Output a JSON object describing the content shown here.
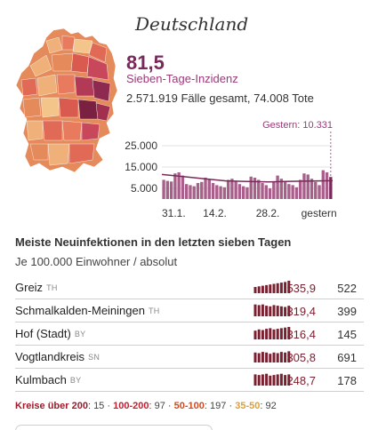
{
  "header": {
    "title": "Deutschland"
  },
  "stats": {
    "incidence": "81,5",
    "incidence_label": "Sieben-Tage-Inzidenz",
    "totals": "2.571.919 Fälle gesamt, 74.008 Tote"
  },
  "chart_data": {
    "type": "bar",
    "callout": "Gestern: 10.331",
    "yticks": [
      "25.000",
      "15.000",
      "5.000"
    ],
    "ytick_values": [
      25000,
      15000,
      5000
    ],
    "xticks": [
      "31.1.",
      "14.2.",
      "28.2.",
      "gestern"
    ],
    "ylim": [
      0,
      30000
    ],
    "values": [
      9000,
      8500,
      8200,
      12000,
      12500,
      11000,
      7000,
      6500,
      6000,
      7500,
      8000,
      10000,
      9000,
      7500,
      6500,
      6000,
      5500,
      9000,
      9500,
      8500,
      7000,
      6000,
      5500,
      10500,
      10000,
      9000,
      7500,
      6500,
      5000,
      8000,
      11000,
      9500,
      8000,
      7000,
      6500,
      5500,
      9000,
      12000,
      11500,
      9500,
      8000,
      6500,
      13500,
      12500,
      10331
    ],
    "trend": [
      11500,
      10500,
      9500,
      8500,
      8200,
      8000,
      8300,
      8400,
      8600
    ]
  },
  "section": {
    "title": "Meiste Neuinfektionen in den letzten sieben Tagen",
    "subtitle": "Je 100.000 Einwohner / absolut"
  },
  "rows": [
    {
      "name": "Greiz",
      "state": "TH",
      "incidence": "535,9",
      "absolute": "522",
      "spark": [
        0.5,
        0.55,
        0.6,
        0.65,
        0.7,
        0.75,
        0.8,
        0.85,
        0.9,
        1.0
      ]
    },
    {
      "name": "Schmalkalden-Meiningen",
      "state": "TH",
      "incidence": "319,4",
      "absolute": "399",
      "spark": [
        0.95,
        0.9,
        0.95,
        0.85,
        0.8,
        0.9,
        0.85,
        0.8,
        0.75,
        0.85
      ]
    },
    {
      "name": "Hof (Stadt)",
      "state": "BY",
      "incidence": "316,4",
      "absolute": "145",
      "spark": [
        0.7,
        0.8,
        0.75,
        0.85,
        0.9,
        0.8,
        0.85,
        0.9,
        0.95,
        1.0
      ]
    },
    {
      "name": "Vogtlandkreis",
      "state": "SN",
      "incidence": "305,8",
      "absolute": "691",
      "spark": [
        0.8,
        0.75,
        0.85,
        0.8,
        0.7,
        0.8,
        0.75,
        0.85,
        0.8,
        0.9
      ]
    },
    {
      "name": "Kulmbach",
      "state": "BY",
      "incidence": "248,7",
      "absolute": "178",
      "spark": [
        0.9,
        0.85,
        0.9,
        0.95,
        0.8,
        0.85,
        0.9,
        0.95,
        0.85,
        0.9
      ]
    }
  ],
  "legend": {
    "items": [
      {
        "label": "Kreise über 200",
        "value": "15",
        "color": "#a01a2a"
      },
      {
        "label": "100-200",
        "value": "97",
        "color": "#c02030"
      },
      {
        "label": "50-100",
        "value": "197",
        "color": "#d04a20"
      },
      {
        "label": "35-50",
        "value": "92",
        "color": "#e0a030"
      }
    ]
  },
  "colors": {
    "accent": "#9a3a78",
    "bar": "#a8608a",
    "trend": "#7a2a5a",
    "incidence_text": "#7a2030"
  }
}
